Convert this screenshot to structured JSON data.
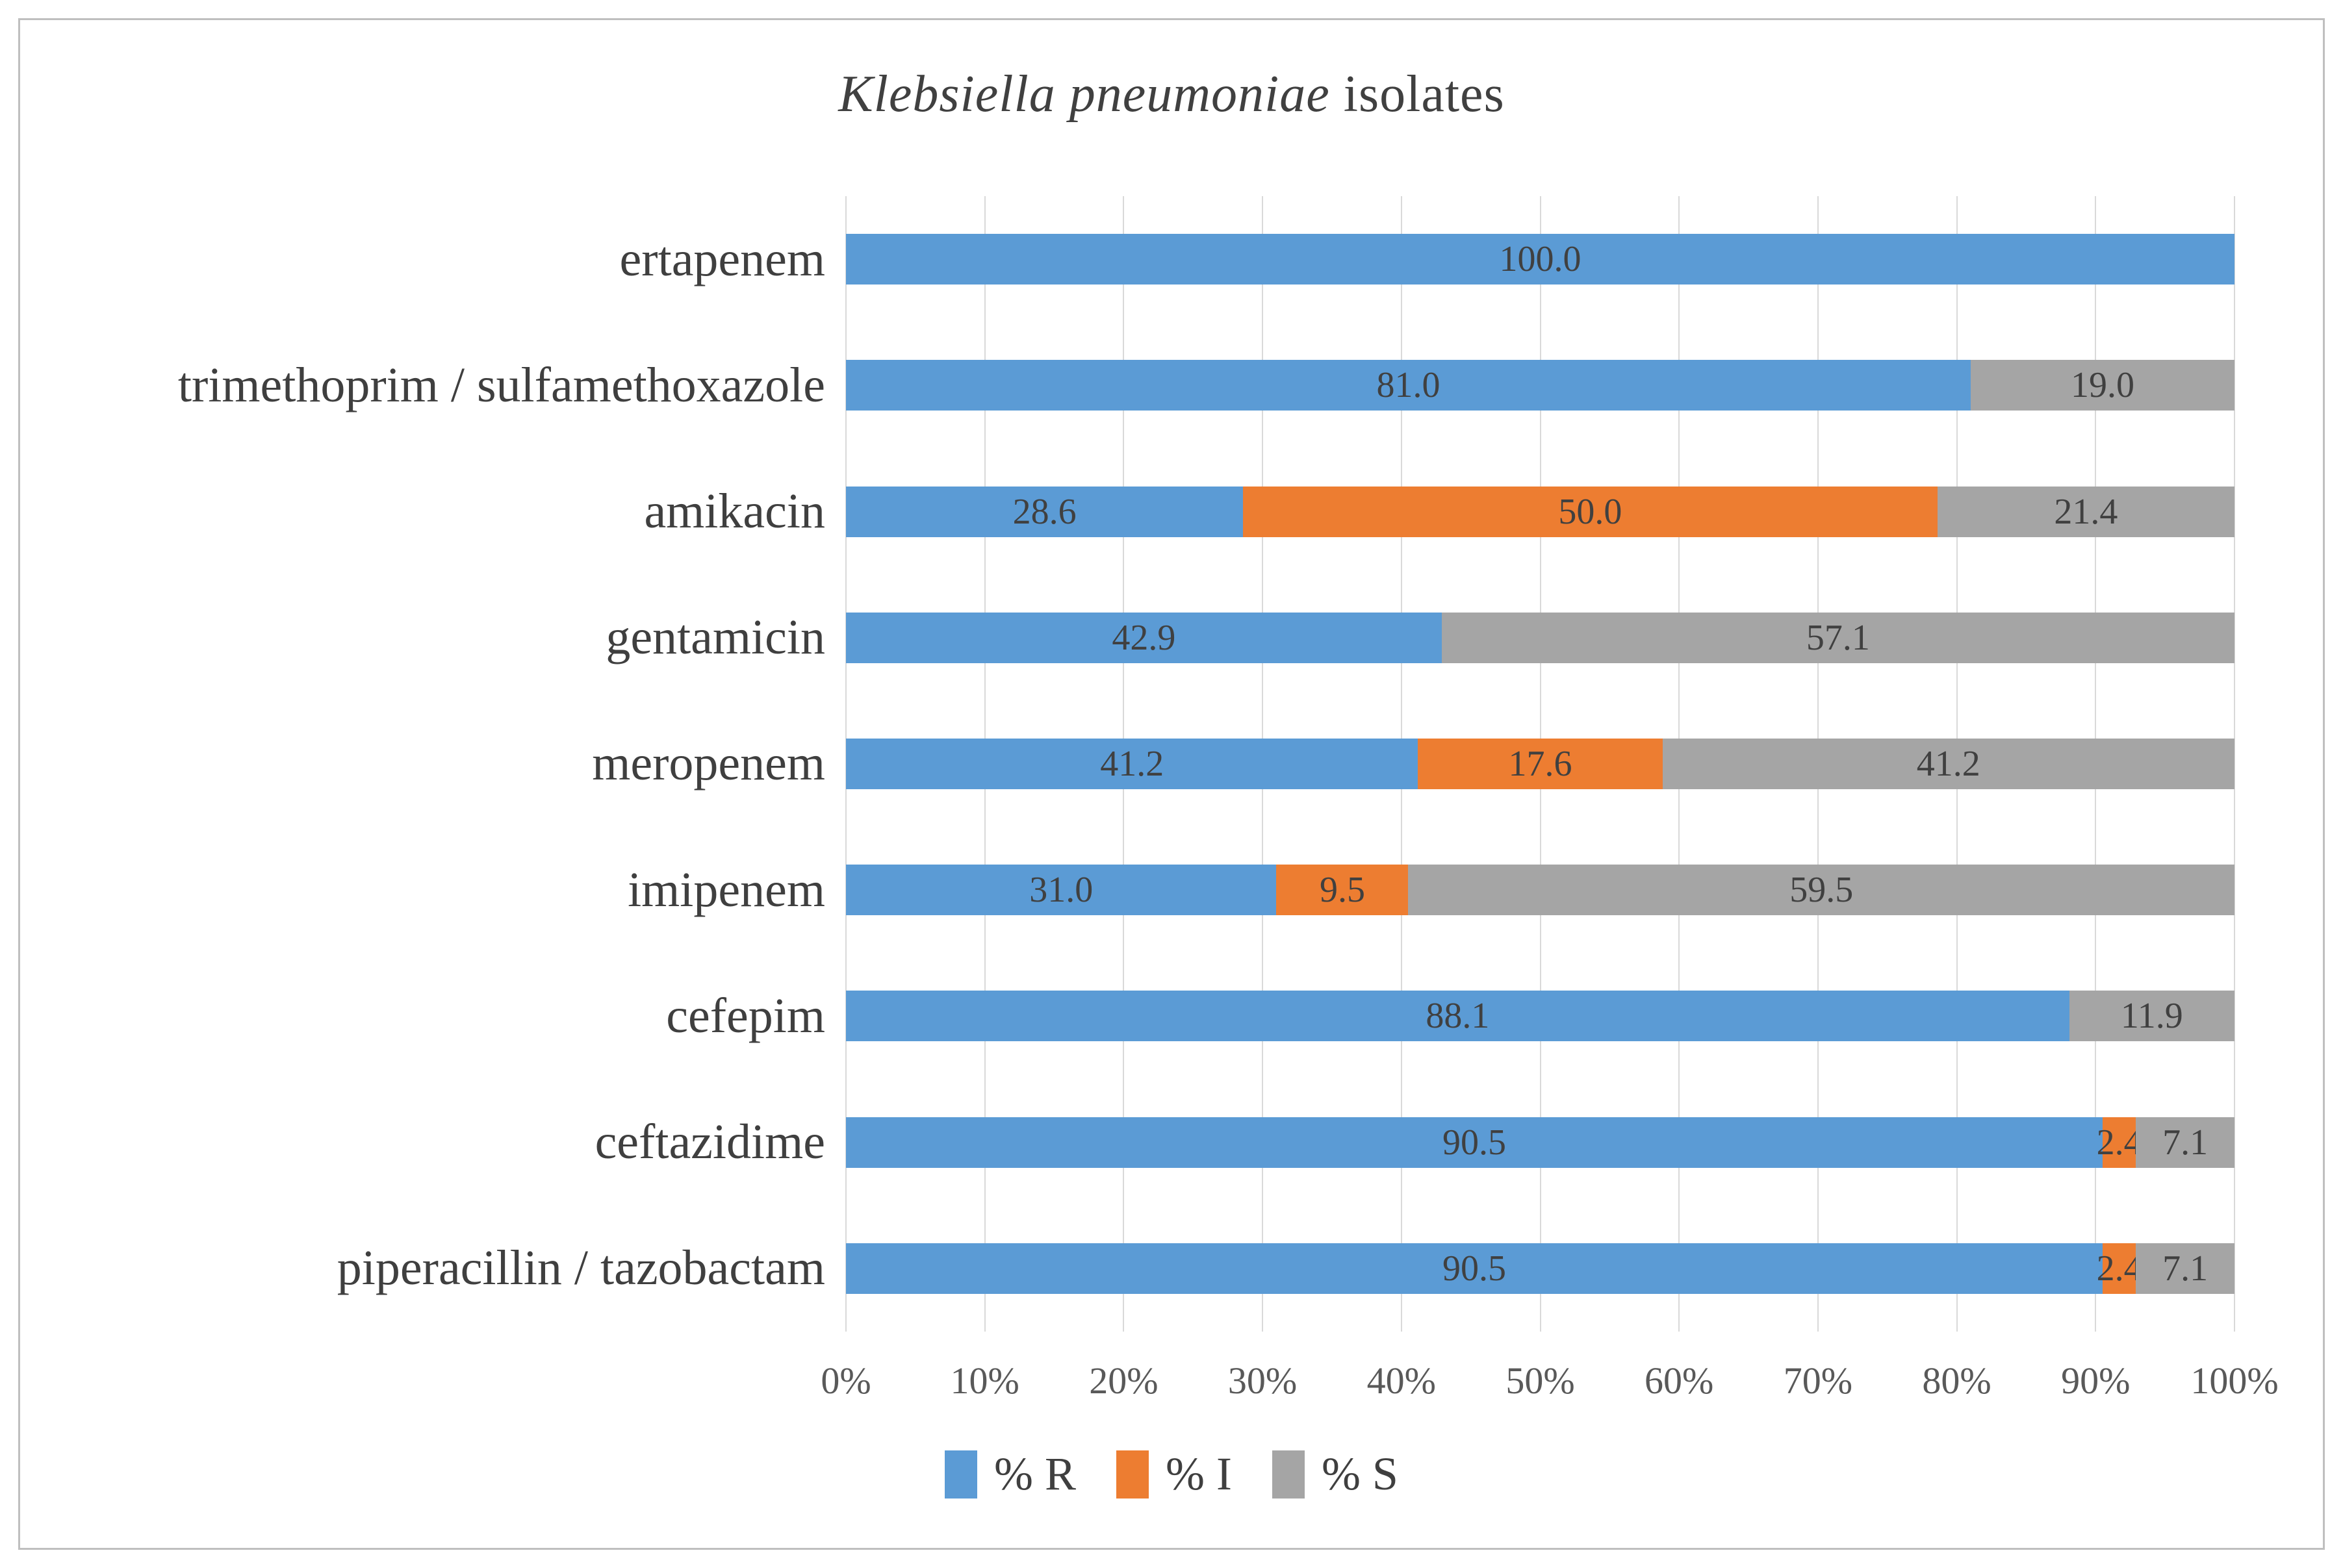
{
  "figure": {
    "title_italic": "Klebsiella pneumoniae",
    "title_regular": " isolates"
  },
  "chart_data": {
    "type": "bar",
    "orientation": "horizontal-stacked",
    "title": "Klebsiella pneumoniae isolates",
    "categories": [
      "ertapenem",
      "trimethoprim / sulfamethoxazole",
      "amikacin",
      "gentamicin",
      "meropenem",
      "imipenem",
      "cefepim",
      "ceftazidime",
      "piperacillin / tazobactam"
    ],
    "series": [
      {
        "name": "% R",
        "color": "#5B9BD5",
        "values": [
          100.0,
          81.0,
          28.6,
          42.9,
          41.2,
          31.0,
          88.1,
          90.5,
          90.5
        ],
        "labels": [
          "100.0",
          "81.0",
          "28.6",
          "42.9",
          "41.2",
          "31.0",
          "88.1",
          "90.5",
          "90.5"
        ]
      },
      {
        "name": "% I",
        "color": "#ED7D31",
        "values": [
          0,
          0,
          50.0,
          0,
          17.6,
          9.5,
          0,
          2.4,
          2.4
        ],
        "labels": [
          "",
          "",
          "50.0",
          "",
          "17.6",
          "9.5",
          "",
          "2.4",
          "2.4"
        ]
      },
      {
        "name": "% S",
        "color": "#A5A5A5",
        "values": [
          0,
          19.0,
          21.4,
          57.1,
          41.2,
          59.5,
          11.9,
          7.1,
          7.1
        ],
        "labels": [
          "",
          "19.0",
          "21.4",
          "57.1",
          "41.2",
          "59.5",
          "11.9",
          "7.1",
          "7.1"
        ]
      }
    ],
    "x_ticks": [
      "0%",
      "10%",
      "20%",
      "30%",
      "40%",
      "50%",
      "60%",
      "70%",
      "80%",
      "90%",
      "100%"
    ],
    "xlim": [
      0,
      100
    ],
    "grid": true,
    "legend_position": "bottom",
    "legend": [
      "% R",
      "% I",
      "% S"
    ]
  },
  "style_colors": {
    "grid": "#D9D9D9",
    "frame_border": "#BFBFBF",
    "text_dark": "#404040",
    "text_axis": "#595959"
  }
}
